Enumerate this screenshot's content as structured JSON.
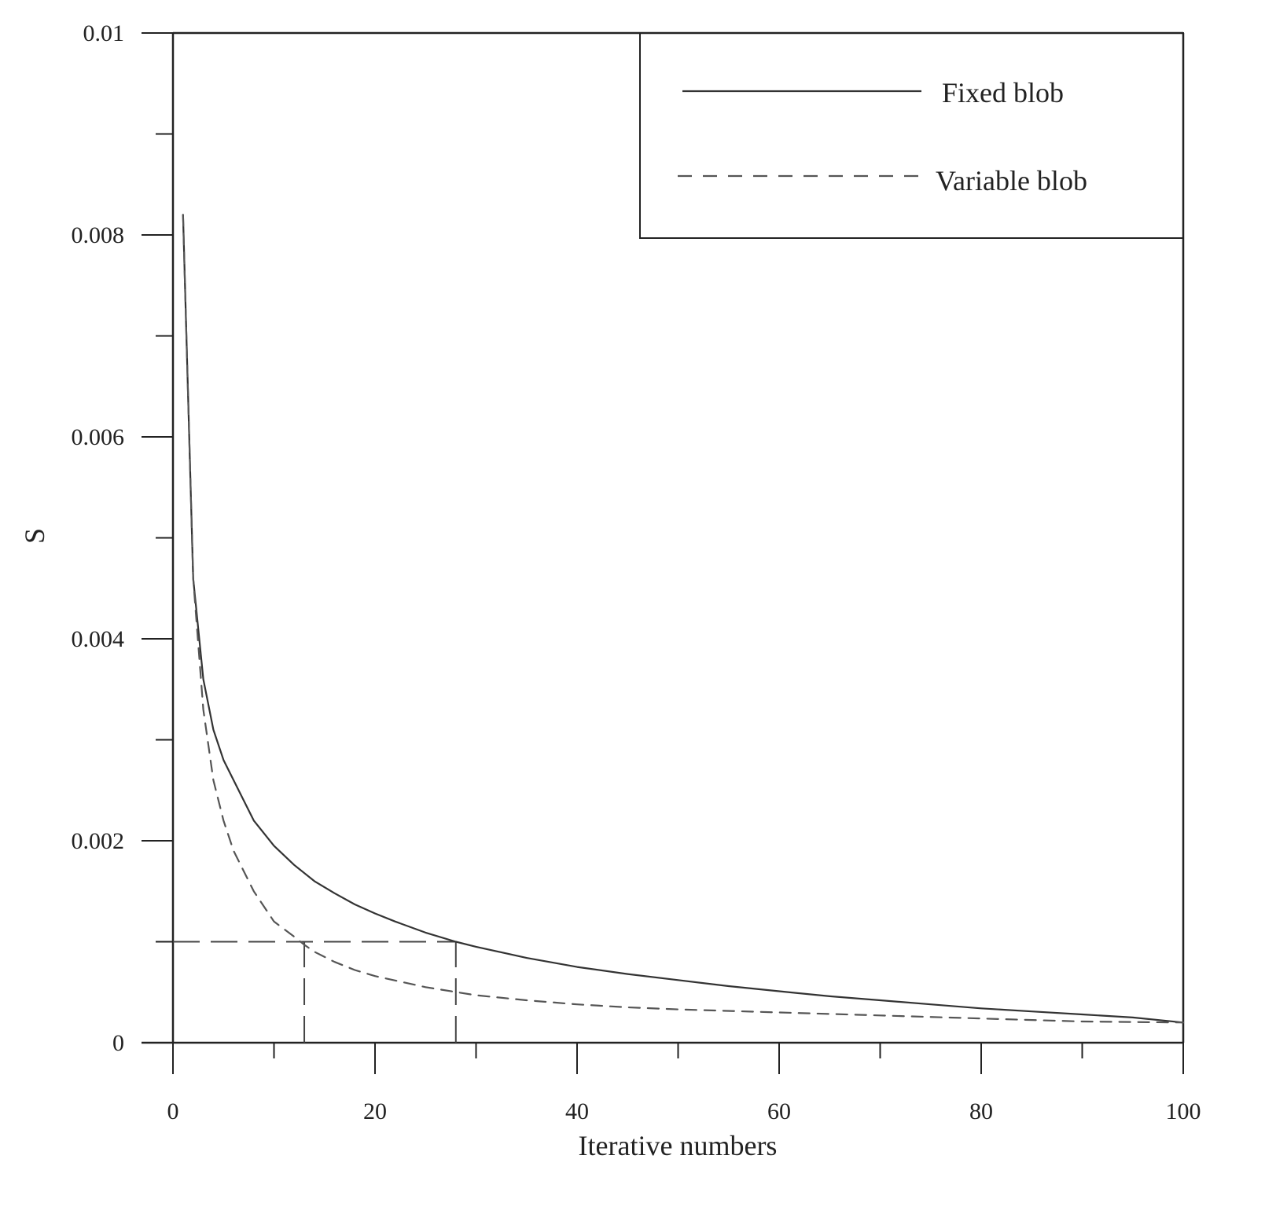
{
  "chart_data": {
    "type": "line",
    "title": "",
    "xlabel": "Iterative numbers",
    "ylabel": "S",
    "xlim": [
      0,
      100
    ],
    "ylim": [
      0,
      0.01
    ],
    "grid": false,
    "legend_position": "top-right",
    "x_ticks": [
      "0",
      "20",
      "40",
      "60",
      "80",
      "100"
    ],
    "x_tick_values": [
      0,
      20,
      40,
      60,
      80,
      100
    ],
    "x_minor_tick_values": [
      10,
      30,
      50,
      70,
      90
    ],
    "y_ticks": [
      "0",
      "0.002",
      "0.004",
      "0.006",
      "0.008",
      "0.01"
    ],
    "y_tick_values": [
      0,
      0.002,
      0.004,
      0.006,
      0.008,
      0.01
    ],
    "y_minor_tick_values": [
      0.001,
      0.003,
      0.005,
      0.007,
      0.009
    ],
    "series": [
      {
        "name": "Fixed blob",
        "style": "solid",
        "color": "#333333",
        "x": [
          1,
          2,
          3,
          4,
          5,
          6,
          8,
          10,
          12,
          14,
          16,
          18,
          20,
          22,
          25,
          28,
          30,
          35,
          40,
          45,
          50,
          55,
          60,
          65,
          70,
          75,
          80,
          85,
          90,
          95,
          100
        ],
        "y": [
          0.0082,
          0.0046,
          0.0036,
          0.0031,
          0.0028,
          0.0026,
          0.0022,
          0.00195,
          0.00176,
          0.0016,
          0.00148,
          0.00137,
          0.00128,
          0.0012,
          0.00109,
          0.001,
          0.00095,
          0.00084,
          0.00075,
          0.00068,
          0.00062,
          0.00056,
          0.00051,
          0.00046,
          0.00042,
          0.00038,
          0.00034,
          0.00031,
          0.00028,
          0.00025,
          0.0002
        ]
      },
      {
        "name": "Variable blob",
        "style": "dashed",
        "color": "#555555",
        "x": [
          1,
          2,
          3,
          4,
          5,
          6,
          8,
          10,
          12,
          13,
          14,
          16,
          18,
          20,
          25,
          30,
          35,
          40,
          45,
          50,
          60,
          70,
          80,
          90,
          100
        ],
        "y": [
          0.0082,
          0.0046,
          0.0033,
          0.0026,
          0.0022,
          0.0019,
          0.0015,
          0.0012,
          0.00105,
          0.00097,
          0.0009,
          0.0008,
          0.00072,
          0.00066,
          0.00055,
          0.00047,
          0.00042,
          0.00038,
          0.00035,
          0.00033,
          0.0003,
          0.00027,
          0.00024,
          0.00021,
          0.0002
        ]
      }
    ],
    "guide_lines": [
      {
        "x": [
          0,
          28
        ],
        "y": [
          0.001,
          0.001
        ]
      },
      {
        "x": [
          13,
          13
        ],
        "y": [
          0,
          0.001
        ]
      },
      {
        "x": [
          28,
          28
        ],
        "y": [
          0,
          0.001
        ]
      }
    ]
  },
  "colors": {
    "axis": "#222222",
    "guide": "#444444",
    "background": "#ffffff"
  }
}
